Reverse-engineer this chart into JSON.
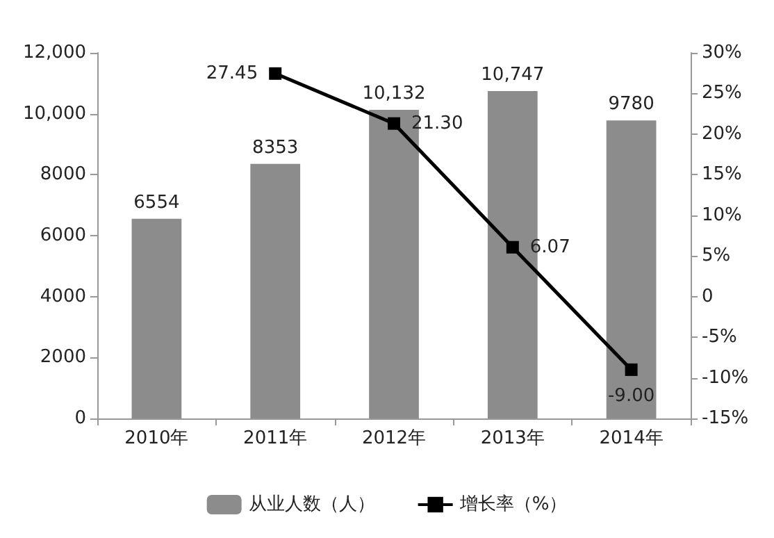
{
  "chart_data": {
    "type": "bar",
    "categories": [
      "2010年",
      "2011年",
      "2012年",
      "2013年",
      "2014年"
    ],
    "series": [
      {
        "name": "从业人数（人）",
        "color": "#8c8c8c",
        "values": [
          6554,
          8353,
          10132,
          10747,
          9780
        ],
        "value_labels": [
          "6554",
          "8353",
          "10,132",
          "10,747",
          "9780"
        ]
      },
      {
        "name": "增长率（%）",
        "type": "line",
        "axis": "y2",
        "color": "#000000",
        "values": [
          null,
          27.45,
          21.3,
          6.07,
          -9.0
        ],
        "value_labels": [
          null,
          "27.45",
          "21.30",
          "6.07",
          "-9.00"
        ]
      }
    ],
    "ylim": [
      0,
      12000
    ],
    "yticks": [
      0,
      2000,
      4000,
      6000,
      8000,
      {
        "value": 10000,
        "label": "10,000"
      },
      {
        "value": 12000,
        "label": "12,000"
      }
    ],
    "y2lim": [
      -15,
      30
    ],
    "y2ticks": [
      {
        "value": -15,
        "label": "-15%"
      },
      {
        "value": -10,
        "label": "-10%"
      },
      {
        "value": -5,
        "label": "-5%"
      },
      0,
      {
        "value": 5,
        "label": "5%"
      },
      {
        "value": 10,
        "label": "10%"
      },
      {
        "value": 15,
        "label": "15%"
      },
      {
        "value": 20,
        "label": "20%"
      },
      {
        "value": 25,
        "label": "25%"
      },
      {
        "value": 30,
        "label": "30%"
      }
    ],
    "grid": false,
    "legend": "bottom",
    "marker": "square",
    "line_style": "solid"
  }
}
